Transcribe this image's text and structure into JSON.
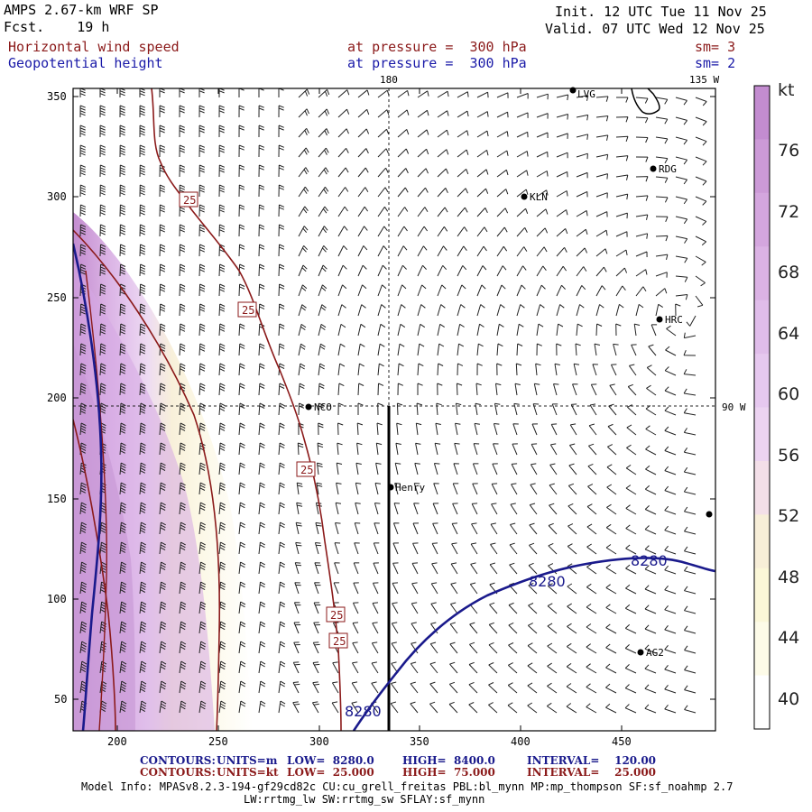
{
  "header": {
    "model_title": "AMPS 2.67-km WRF SP",
    "forecast": "Fcst.    19 h",
    "init": "Init. 12 UTC Tue 11 Nov 25",
    "valid": "Valid. 07 UTC Wed 12 Nov 25",
    "field1_name": "Horizontal wind speed",
    "field1_level": "at pressure =  300 hPa",
    "field1_sm": "sm= 3",
    "field2_name": "Geopotential height",
    "field2_level": "at pressure =  300 hPa",
    "field2_sm": "sm= 2"
  },
  "map": {
    "meridian_label": "180",
    "lon135_label": "135 W",
    "lon90_label": "90 W",
    "stations": [
      "LVG",
      "RDG",
      "KLN",
      "HRC",
      "NCO",
      "Henry",
      "AG2"
    ],
    "x_ticks": [
      "200",
      "250",
      "300",
      "350",
      "400",
      "450"
    ],
    "y_ticks": [
      "350",
      "300",
      "250",
      "200",
      "150",
      "100",
      "50"
    ],
    "wind_contour_labels": [
      "25",
      "25",
      "25",
      "25",
      "25"
    ],
    "height_contour_labels": [
      "8280",
      "8280",
      "8280"
    ]
  },
  "colorbar": {
    "unit": "kt",
    "labels": [
      "76",
      "72",
      "68",
      "64",
      "60",
      "56",
      "52",
      "48",
      "44",
      "40"
    ],
    "colors": [
      "#c38cd0",
      "#cc9ad7",
      "#d4a6de",
      "#dbb2e4",
      "#e0bdea",
      "#e6c8ef",
      "#ecd3f1",
      "#f3dfe8",
      "#f7eed8",
      "#fbf7d8",
      "#fdfbe8",
      "#ffffff"
    ]
  },
  "footer": {
    "contours_label": "CONTOURS:",
    "height_units": "UNITS=m",
    "height_low": "LOW=  8280.0",
    "height_high": "HIGH=  8400.0",
    "height_interval": "INTERVAL=    120.00",
    "wind_units": "UNITS=kt",
    "wind_low": "LOW=  25.000",
    "wind_high": "HIGH=  75.000",
    "wind_interval": "INTERVAL=    25.000",
    "model_info_1": "Model Info: MPASv8.2.3-194-gf29cd82c CU:cu_grell_freitas PBL:bl_mynn MP:mp_thompson SF:sf_noahmp 2.7",
    "model_info_2": "LW:rrtmg_lw SW:rrtmg_sw SFLAY:sf_mynn"
  },
  "colors": {
    "wind_contour": "#8b1a1a",
    "height_contour": "#1a1a8c",
    "header_red": "#8b1a1a",
    "header_blue": "#1a1aa8"
  }
}
